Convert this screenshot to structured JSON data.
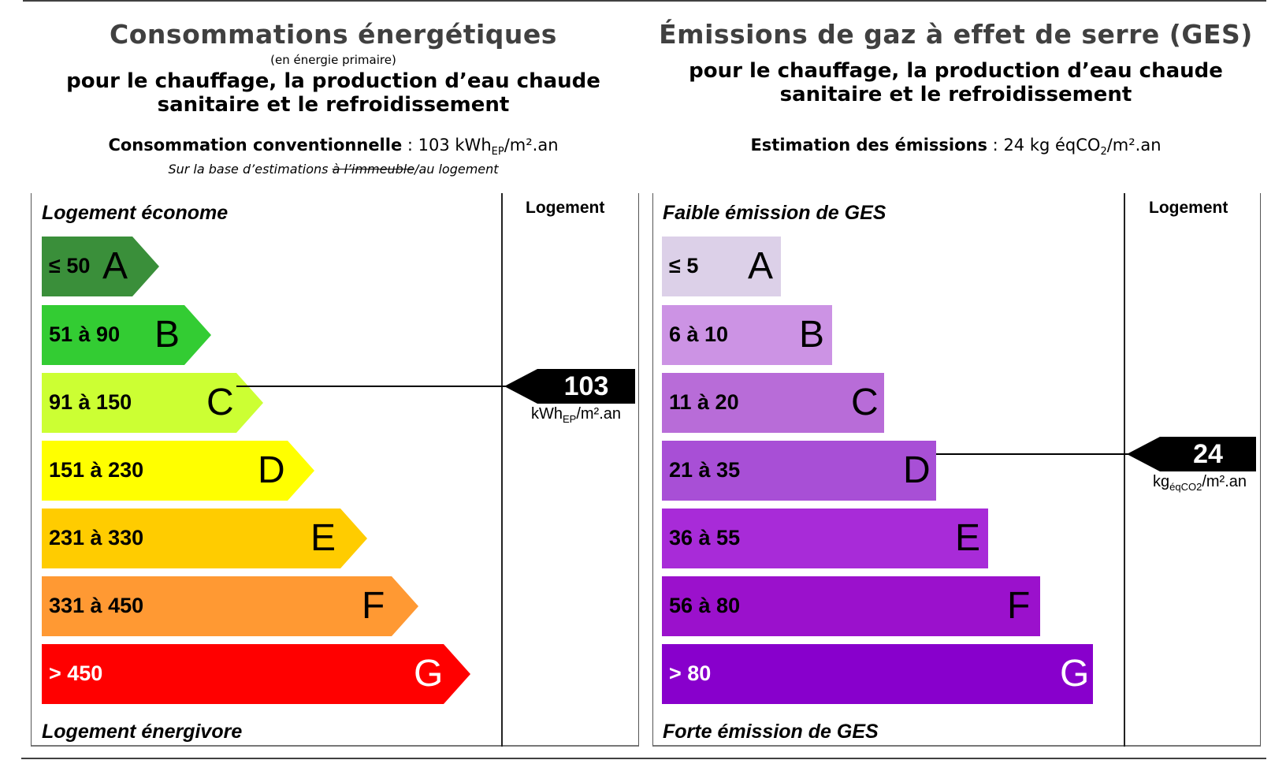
{
  "energy": {
    "title": "Consommations énergétiques",
    "subtitle": "(en énergie primaire)",
    "line1": "pour le chauffage, la production d’eau chaude",
    "line2": "sanitaire et le refroidissement",
    "conso_label": "Consommation conventionnelle",
    "conso_sep": " : ",
    "conso_value": "103 kWh",
    "conso_sub": "EP",
    "conso_unit": "/m².an",
    "note_before": "Sur la base d’estimations ",
    "note_struck": "à l’immeuble",
    "note_after": "/au logement",
    "top_label": "Logement économe",
    "bottom_label": "Logement énergivore",
    "column_header": "Logement",
    "marker_value": "103",
    "marker_unit": "kWh",
    "marker_unit_sub": "EP",
    "marker_unit_rest": "/m².an"
  },
  "ges": {
    "title": "Émissions de gaz à effet de serre (GES)",
    "line1": "pour le chauffage, la production d’eau chaude",
    "line2": "sanitaire et le refroidissement",
    "conso_label": "Estimation des émissions",
    "conso_sep": " : ",
    "conso_value": "24 kg éqCO",
    "conso_sub": "2",
    "conso_unit": "/m².an",
    "top_label": "Faible émission de GES",
    "bottom_label": "Forte émission de GES",
    "column_header": "Logement",
    "marker_value": "24",
    "marker_unit": "kg",
    "marker_unit_sub": "éqCO2",
    "marker_unit_rest": "/m².an"
  },
  "chart_data": [
    {
      "type": "bar",
      "title": "Consommations énergétiques",
      "categories": [
        "A",
        "B",
        "C",
        "D",
        "E",
        "F",
        "G"
      ],
      "ranges": [
        "≤ 50",
        "51 à 90",
        "91 à 150",
        "151 à 230",
        "231 à 330",
        "331 à 450",
        "> 450"
      ],
      "colors": [
        "#3a8f3a",
        "#33cc33",
        "#ccff33",
        "#ffff00",
        "#ffcc00",
        "#ff9933",
        "#ff0000"
      ],
      "text_colors": [
        "#000",
        "#000",
        "#000",
        "#000",
        "#000",
        "#000",
        "#fff"
      ],
      "shape": "arrow",
      "value": 103,
      "value_class": "C",
      "unit": "kWhEP/m².an"
    },
    {
      "type": "bar",
      "title": "Émissions de gaz à effet de serre (GES)",
      "categories": [
        "A",
        "B",
        "C",
        "D",
        "E",
        "F",
        "G"
      ],
      "ranges": [
        "≤ 5",
        "6 à 10",
        "11 à 20",
        "21 à 35",
        "36 à 55",
        "56 à 80",
        "> 80"
      ],
      "colors": [
        "#dcd0e8",
        "#cc93e4",
        "#b86cd8",
        "#a84fd6",
        "#a82bd8",
        "#9b11cc",
        "#8800cc"
      ],
      "text_colors": [
        "#000",
        "#000",
        "#000",
        "#000",
        "#000",
        "#000",
        "#fff"
      ],
      "shape": "rectangle",
      "value": 24,
      "value_class": "D",
      "unit": "kgéqCO2/m².an"
    }
  ]
}
